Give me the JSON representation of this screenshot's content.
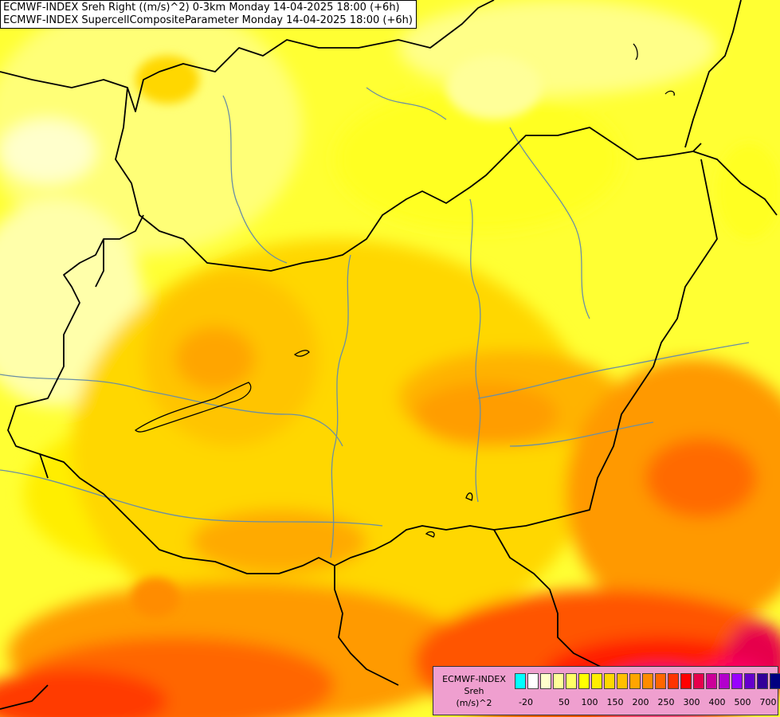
{
  "header": {
    "line1": "ECMWF-INDEX Sreh Right ((m/s)^2) 0-3km Monday 14-04-2025 18:00 (+6h)",
    "line2": "ECMWF-INDEX SupercellCompositeParameter Monday 14-04-2025 18:00 (+6h)"
  },
  "legend": {
    "title1": "ECMWF-INDEX",
    "title2": "Sreh",
    "unit": "(m/s)^2",
    "colors": [
      "#00ffff",
      "#ffffff",
      "#ffffcc",
      "#ffff99",
      "#ffff66",
      "#ffff00",
      "#ffee00",
      "#ffd700",
      "#ffc000",
      "#ffa500",
      "#ff8c00",
      "#ff6600",
      "#ff3300",
      "#ff0000",
      "#e6004c",
      "#cc0099",
      "#b300cc",
      "#9900ff",
      "#6600cc",
      "#330099",
      "#000080"
    ],
    "labels": [
      "-20",
      "50",
      "100",
      "150",
      "200",
      "250",
      "300",
      "400",
      "500",
      "700"
    ]
  },
  "colors": {
    "background": "#ffff66",
    "border": "#000000",
    "river": "#6b8fa3"
  }
}
